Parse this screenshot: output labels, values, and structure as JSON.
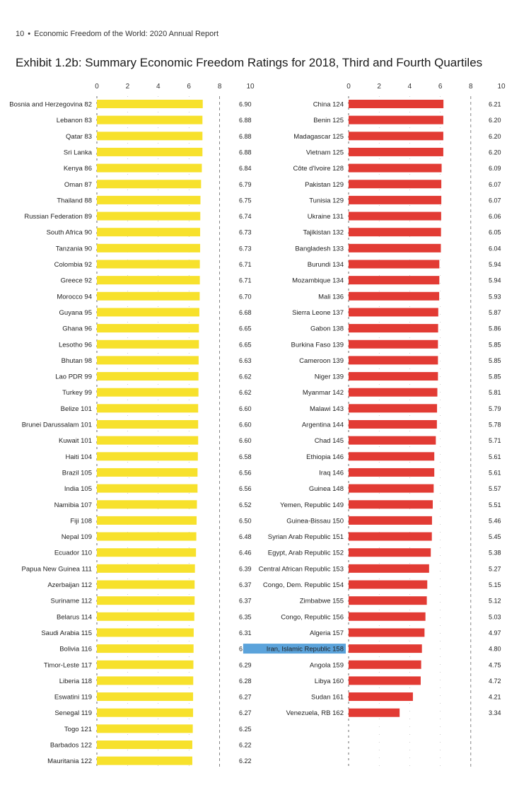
{
  "header": {
    "page_number": "10",
    "separator": "•",
    "report_name": "Economic Freedom of the World: 2020 Annual Report"
  },
  "title": "Exhibit 1.2b: Summary Economic Freedom Ratings for 2018, Third and Fourth Quartiles",
  "colors": {
    "third_quartile": "#f7e12c",
    "fourth_quartile": "#e23b34",
    "highlight": "#5ba3db"
  },
  "chart_data": [
    {
      "type": "bar",
      "orientation": "horizontal",
      "xlim": [
        0,
        10
      ],
      "xticks": [
        "0",
        "2",
        "4",
        "6",
        "8",
        "10"
      ],
      "grid": "dashed vertical at 8",
      "categories": [
        "Bosnia and Herzegovina 82",
        "Lebanon 83",
        "Qatar 83",
        "Sri Lanka",
        "Kenya 86",
        "Oman 87",
        "Thailand 88",
        "Russian Federation 89",
        "South Africa 90",
        "Tanzania 90",
        "Colombia 92",
        "Greece 92",
        "Morocco 94",
        "Guyana 95",
        "Ghana 96",
        "Lesotho 96",
        "Bhutan 98",
        "Lao PDR 99",
        "Turkey 99",
        "Belize 101",
        "Brunei Darussalam 101",
        "Kuwait 101",
        "Haiti 104",
        "Brazil 105",
        "India 105",
        "Namibia 107",
        "Fiji 108",
        "Nepal 109",
        "Ecuador 110",
        "Papua New Guinea 111",
        "Azerbaijan 112",
        "Suriname 112",
        "Belarus 114",
        "Saudi Arabia 115",
        "Bolivia 116",
        "Timor-Leste 117",
        "Liberia 118",
        "Eswatini 119",
        "Senegal 119",
        "Togo 121",
        "Barbados 122",
        "Mauritania 122"
      ],
      "values": [
        6.9,
        6.88,
        6.88,
        6.88,
        6.84,
        6.79,
        6.75,
        6.74,
        6.73,
        6.73,
        6.71,
        6.71,
        6.7,
        6.68,
        6.65,
        6.65,
        6.63,
        6.62,
        6.62,
        6.6,
        6.6,
        6.6,
        6.58,
        6.56,
        6.56,
        6.52,
        6.5,
        6.48,
        6.46,
        6.39,
        6.37,
        6.37,
        6.35,
        6.31,
        6.3,
        6.29,
        6.28,
        6.27,
        6.27,
        6.25,
        6.22,
        6.22
      ],
      "value_labels": [
        "6.90",
        "6.88",
        "6.88",
        "6.88",
        "6.84",
        "6.79",
        "6.75",
        "6.74",
        "6.73",
        "6.73",
        "6.71",
        "6.71",
        "6.70",
        "6.68",
        "6.65",
        "6.65",
        "6.63",
        "6.62",
        "6.62",
        "6.60",
        "6.60",
        "6.60",
        "6.58",
        "6.56",
        "6.56",
        "6.52",
        "6.50",
        "6.48",
        "6.46",
        "6.39",
        "6.37",
        "6.37",
        "6.35",
        "6.31",
        "6.30",
        "6.29",
        "6.28",
        "6.27",
        "6.27",
        "6.25",
        "6.22",
        "6.22"
      ]
    },
    {
      "type": "bar",
      "orientation": "horizontal",
      "xlim": [
        0,
        10
      ],
      "xticks": [
        "0",
        "2",
        "4",
        "6",
        "8",
        "10"
      ],
      "grid": "dashed vertical at 8",
      "highlighted_category": "Iran, Islamic Republic 158",
      "categories": [
        "China 124",
        "Benin 125",
        "Madagascar 125",
        "Vietnam 125",
        "Côte d'Ivoire 128",
        "Pakistan 129",
        "Tunisia 129",
        "Ukraine 131",
        "Tajikistan 132",
        "Bangladesh 133",
        "Burundi 134",
        "Mozambique 134",
        "Mali 136",
        "Sierra Leone 137",
        "Gabon 138",
        "Burkina Faso 139",
        "Cameroon 139",
        "Niger 139",
        "Myanmar 142",
        "Malawi 143",
        "Argentina 144",
        "Chad 145",
        "Ethiopia 146",
        "Iraq 146",
        "Guinea 148",
        "Yemen, Republic 149",
        "Guinea-Bissau 150",
        "Syrian Arab Republic 151",
        "Egypt, Arab Republic 152",
        "Central African Republic 153",
        "Congo, Dem. Republic 154",
        "Zimbabwe 155",
        "Congo, Republic 156",
        "Algeria 157",
        "Iran, Islamic Republic 158",
        "Angola 159",
        "Libya 160",
        "Sudan 161",
        "Venezuela, RB 162"
      ],
      "values": [
        6.21,
        6.2,
        6.2,
        6.2,
        6.09,
        6.07,
        6.07,
        6.06,
        6.05,
        6.04,
        5.94,
        5.94,
        5.93,
        5.87,
        5.86,
        5.85,
        5.85,
        5.85,
        5.81,
        5.79,
        5.78,
        5.71,
        5.61,
        5.61,
        5.57,
        5.51,
        5.46,
        5.45,
        5.38,
        5.27,
        5.15,
        5.12,
        5.03,
        4.97,
        4.8,
        4.75,
        4.72,
        4.21,
        3.34
      ],
      "value_labels": [
        "6.21",
        "6.20",
        "6.20",
        "6.20",
        "6.09",
        "6.07",
        "6.07",
        "6.06",
        "6.05",
        "6.04",
        "5.94",
        "5.94",
        "5.93",
        "5.87",
        "5.86",
        "5.85",
        "5.85",
        "5.85",
        "5.81",
        "5.79",
        "5.78",
        "5.71",
        "5.61",
        "5.61",
        "5.57",
        "5.51",
        "5.46",
        "5.45",
        "5.38",
        "5.27",
        "5.15",
        "5.12",
        "5.03",
        "4.97",
        "4.80",
        "4.75",
        "4.72",
        "4.21",
        "3.34"
      ]
    }
  ]
}
